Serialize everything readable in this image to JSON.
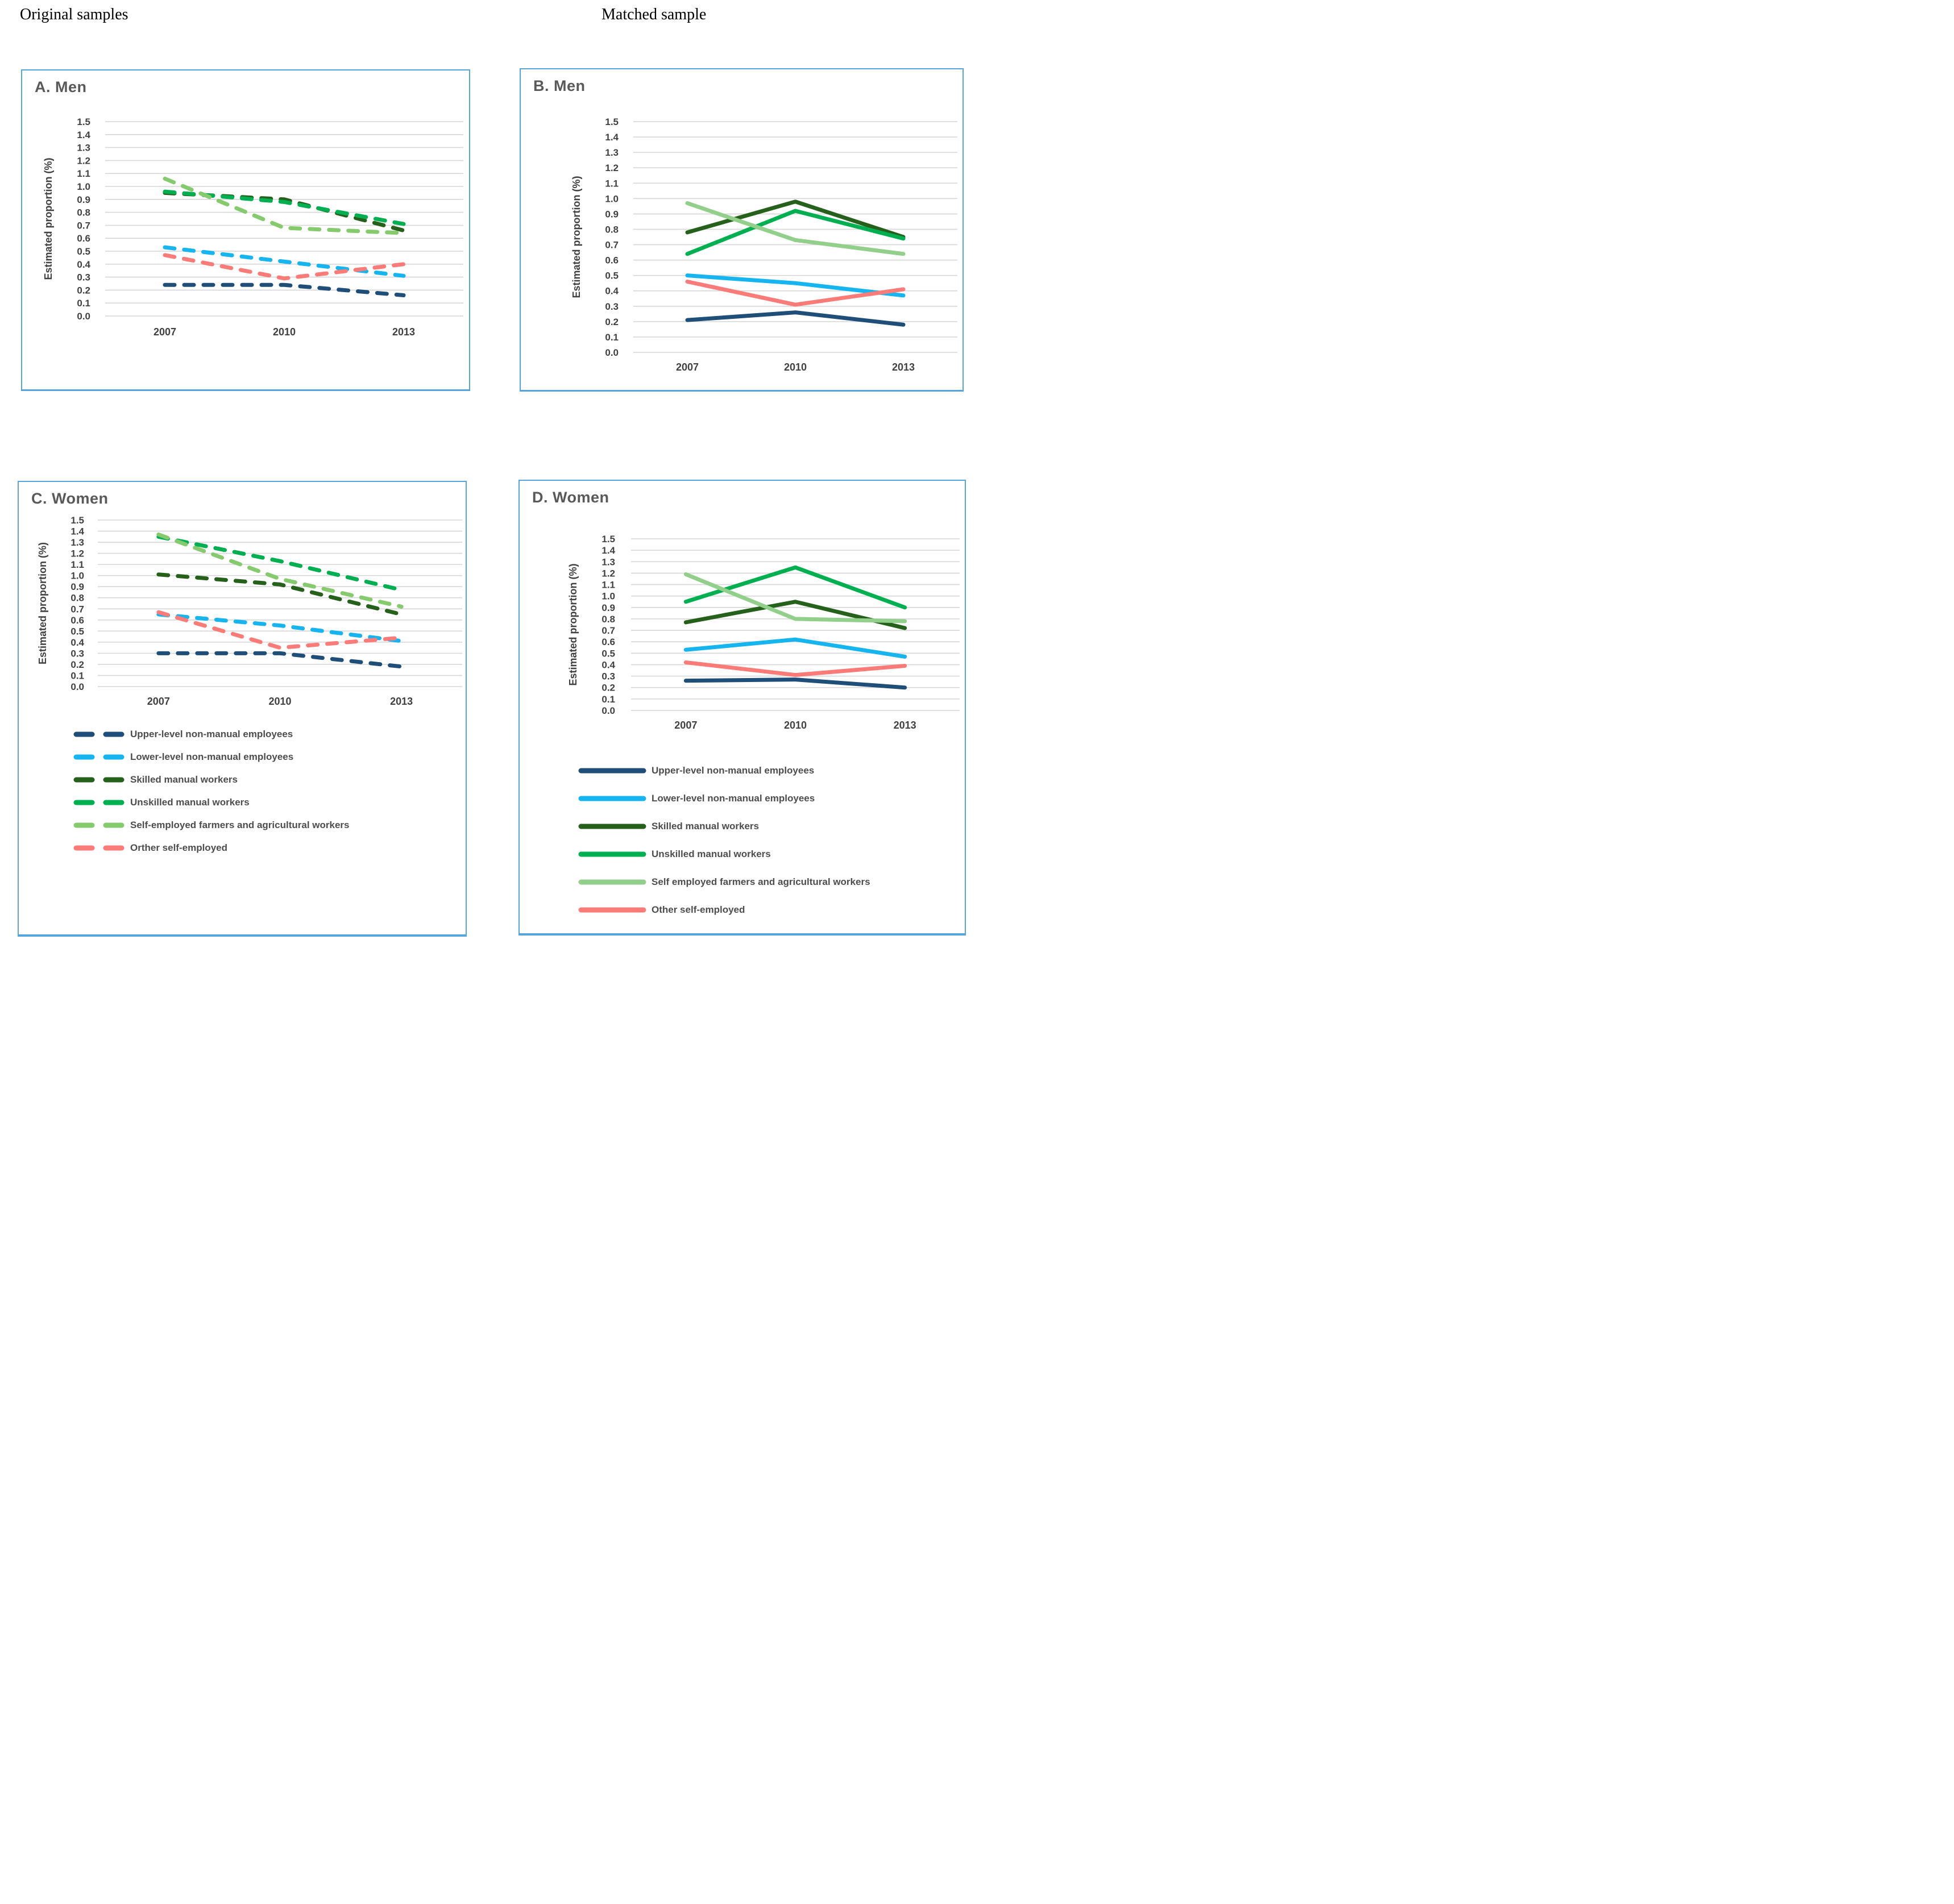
{
  "header": {
    "left": "Original samples",
    "right": "Matched sample"
  },
  "colors": {
    "panel_border": "#55A4DC",
    "grid": "#D6D6D6",
    "panel_title_text": "#595959",
    "axis_text": "#404040",
    "legend_text": "#4d4d4d",
    "upper_navy": "#1F4E79",
    "lower_blue": "#16B5F0",
    "skilled_dark_green": "#26611C",
    "unskilled_green": "#00B050",
    "farmers_light_green_dashed": "#85CB6E",
    "farmers_light_green_solid": "#92CF8A",
    "other_salmon": "#FB7B78"
  },
  "y_tick_labels": [
    "1.5",
    "1.4",
    "1.3",
    "1.2",
    "1.1",
    "1.0",
    "0.9",
    "0.8",
    "0.7",
    "0.6",
    "0.5",
    "0.4",
    "0.3",
    "0.2",
    "0.1",
    "0.0"
  ],
  "chart_data": [
    {
      "id": "A",
      "title": "A. Men",
      "column": "Original samples",
      "type": "line",
      "line_style": "dashed",
      "x": [
        "2007",
        "2010",
        "2013"
      ],
      "xlabel": "",
      "ylabel": "Estimated proportion (%)",
      "ylim": [
        0.0,
        1.5
      ],
      "ytick_step": 0.1,
      "grid": true,
      "legend": false,
      "series": [
        {
          "name": "Upper-level non-manual employees",
          "color": "#1F4E79",
          "values": [
            0.24,
            0.24,
            0.16
          ]
        },
        {
          "name": "Lower-level non-manual employees",
          "color": "#16B5F0",
          "values": [
            0.53,
            0.42,
            0.31
          ]
        },
        {
          "name": "Skilled manual workers",
          "color": "#26611C",
          "values": [
            0.95,
            0.9,
            0.66
          ]
        },
        {
          "name": "Unskilled manual workers",
          "color": "#00B050",
          "values": [
            0.96,
            0.88,
            0.71
          ]
        },
        {
          "name": "Self-employed farmers and agricultural workers",
          "color": "#85CB6E",
          "values": [
            1.06,
            0.68,
            0.64
          ]
        },
        {
          "name": "Orther self-employed",
          "color": "#FB7B78",
          "values": [
            0.47,
            0.29,
            0.4
          ]
        }
      ]
    },
    {
      "id": "B",
      "title": "B. Men",
      "column": "Matched sample",
      "type": "line",
      "line_style": "solid",
      "x": [
        "2007",
        "2010",
        "2013"
      ],
      "xlabel": "",
      "ylabel": "Estimated proportion (%)",
      "ylim": [
        0.0,
        1.5
      ],
      "ytick_step": 0.1,
      "grid": true,
      "legend": false,
      "series": [
        {
          "name": "Upper-level non-manual employees",
          "color": "#1F4E79",
          "values": [
            0.21,
            0.26,
            0.18
          ]
        },
        {
          "name": "Lower-level non-manual employees",
          "color": "#16B5F0",
          "values": [
            0.5,
            0.45,
            0.37
          ]
        },
        {
          "name": "Skilled manual workers",
          "color": "#26611C",
          "values": [
            0.78,
            0.98,
            0.75
          ]
        },
        {
          "name": "Unskilled manual workers",
          "color": "#00B050",
          "values": [
            0.64,
            0.92,
            0.74
          ]
        },
        {
          "name": "Self employed farmers and agricultural workers",
          "color": "#92CF8A",
          "values": [
            0.97,
            0.73,
            0.64
          ]
        },
        {
          "name": "Other self-employed",
          "color": "#FB7B78",
          "values": [
            0.46,
            0.31,
            0.41
          ]
        }
      ]
    },
    {
      "id": "C",
      "title": "C. Women",
      "column": "Original samples",
      "type": "line",
      "line_style": "dashed",
      "x": [
        "2007",
        "2010",
        "2013"
      ],
      "xlabel": "",
      "ylabel": "Estimated proportion (%)",
      "ylim": [
        0.0,
        1.5
      ],
      "ytick_step": 0.1,
      "grid": true,
      "legend": true,
      "series": [
        {
          "name": "Upper-level non-manual employees",
          "color": "#1F4E79",
          "values": [
            0.3,
            0.3,
            0.18
          ]
        },
        {
          "name": "Lower-level non-manual employees",
          "color": "#16B5F0",
          "values": [
            0.65,
            0.55,
            0.41
          ]
        },
        {
          "name": "Skilled manual workers",
          "color": "#26611C",
          "values": [
            1.01,
            0.92,
            0.65
          ]
        },
        {
          "name": "Unskilled manual workers",
          "color": "#00B050",
          "values": [
            1.35,
            1.13,
            0.87
          ]
        },
        {
          "name": "Self-employed farmers and agricultural workers",
          "color": "#85CB6E",
          "values": [
            1.37,
            0.97,
            0.72
          ]
        },
        {
          "name": "Orther self-employed",
          "color": "#FB7B78",
          "values": [
            0.67,
            0.35,
            0.44
          ]
        }
      ]
    },
    {
      "id": "D",
      "title": "D. Women",
      "column": "Matched sample",
      "type": "line",
      "line_style": "solid",
      "x": [
        "2007",
        "2010",
        "2013"
      ],
      "xlabel": "",
      "ylabel": "Estimated proportion (%)",
      "ylim": [
        0.0,
        1.5
      ],
      "ytick_step": 0.1,
      "grid": true,
      "legend": true,
      "series": [
        {
          "name": "Upper-level non-manual employees",
          "color": "#1F4E79",
          "values": [
            0.26,
            0.27,
            0.2
          ]
        },
        {
          "name": "Lower-level non-manual employees",
          "color": "#16B5F0",
          "values": [
            0.53,
            0.62,
            0.47
          ]
        },
        {
          "name": "Skilled manual workers",
          "color": "#26611C",
          "values": [
            0.77,
            0.95,
            0.72
          ]
        },
        {
          "name": "Unskilled manual workers",
          "color": "#00B050",
          "values": [
            0.95,
            1.25,
            0.9
          ]
        },
        {
          "name": "Self employed farmers and agricultural workers",
          "color": "#92CF8A",
          "values": [
            1.19,
            0.8,
            0.78
          ]
        },
        {
          "name": "Other self-employed",
          "color": "#FB7B78",
          "values": [
            0.42,
            0.31,
            0.39
          ]
        }
      ]
    }
  ]
}
